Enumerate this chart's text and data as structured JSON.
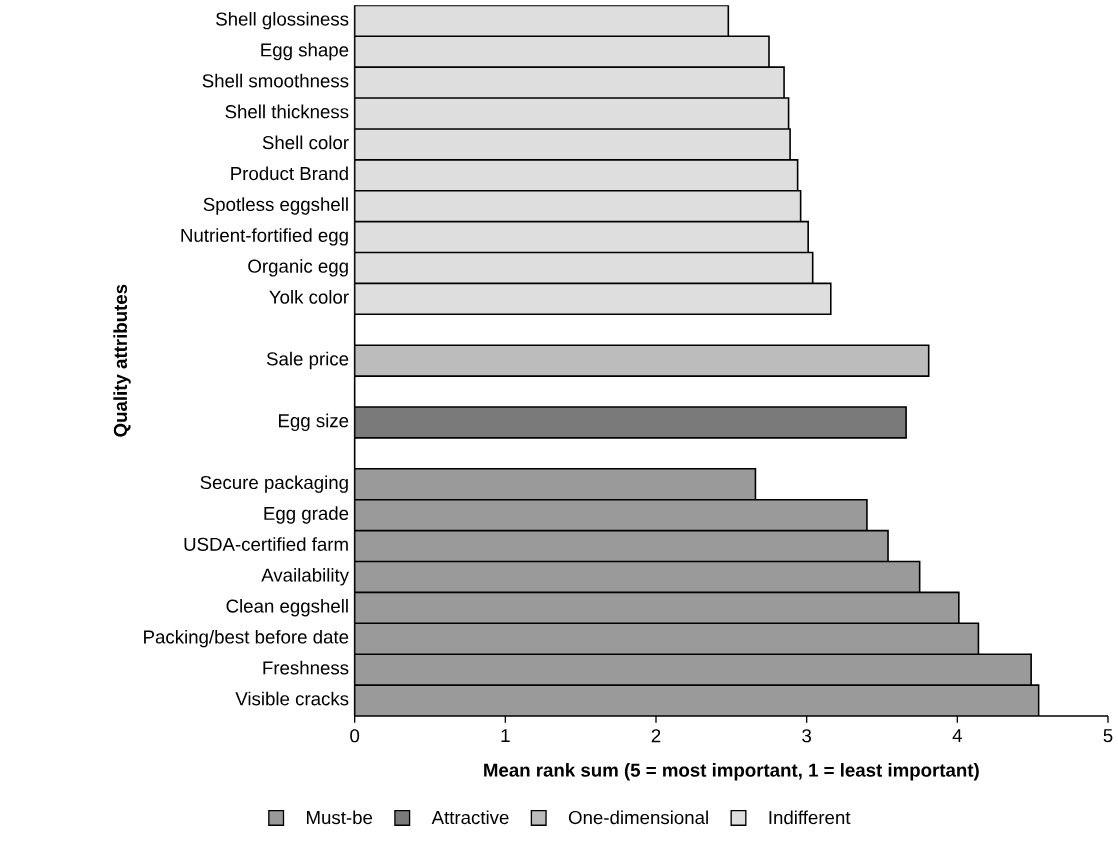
{
  "chart_data": {
    "type": "bar",
    "orientation": "horizontal",
    "xlabel": "Mean rank sum (5 = most important, 1 = least important)",
    "ylabel": "Quality attributes",
    "categories": [
      "Shell  glossiness",
      "Egg shape",
      "Shell smoothness",
      "Shell thickness",
      "Shell color",
      "Product Brand",
      "Spotless eggshell",
      "Nutrient-fortified egg",
      "Organic egg",
      "Yolk color",
      null,
      "Sale price",
      null,
      "Egg size",
      null,
      "Secure packaging",
      "Egg grade",
      "USDA-certified farm",
      "Availability",
      "Clean eggshell",
      "Packing/best before date",
      "Freshness",
      "Visible cracks"
    ],
    "series": [
      {
        "name": "Must-be",
        "color": "#9a9a9a",
        "values": [
          null,
          null,
          null,
          null,
          null,
          null,
          null,
          null,
          null,
          null,
          null,
          null,
          null,
          null,
          null,
          2.66,
          3.4,
          3.54,
          3.75,
          4.01,
          4.14,
          4.49,
          4.54
        ]
      },
      {
        "name": "Attractive",
        "color": "#7a7a7a",
        "values": [
          null,
          null,
          null,
          null,
          null,
          null,
          null,
          null,
          null,
          null,
          null,
          null,
          null,
          3.66,
          null,
          null,
          null,
          null,
          null,
          null,
          null,
          null,
          null
        ]
      },
      {
        "name": "One-dimensional",
        "color": "#bcbcbc",
        "values": [
          null,
          null,
          null,
          null,
          null,
          null,
          null,
          null,
          null,
          null,
          null,
          3.81,
          null,
          null,
          null,
          null,
          null,
          null,
          null,
          null,
          null,
          null,
          null
        ]
      },
      {
        "name": "Indifferent",
        "color": "#dedede",
        "values": [
          2.48,
          2.75,
          2.85,
          2.88,
          2.89,
          2.94,
          2.96,
          3.01,
          3.04,
          3.16,
          null,
          null,
          null,
          null,
          null,
          null,
          null,
          null,
          null,
          null,
          null,
          null,
          null
        ]
      }
    ],
    "xlim": [
      0,
      5
    ],
    "xticks": [
      0,
      1,
      2,
      3,
      4,
      5
    ],
    "legend": "bottom",
    "grid": false
  }
}
